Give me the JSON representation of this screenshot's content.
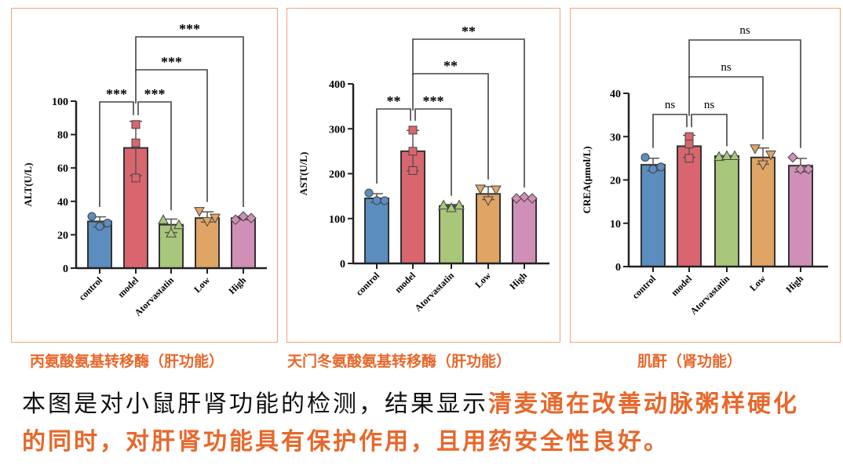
{
  "chart_data": [
    {
      "type": "bar",
      "title": "丙氨酸氨基转移酶（肝功能）",
      "ylabel": "ALT(U/L)",
      "ylim": [
        0,
        100
      ],
      "yticks": [
        0,
        20,
        40,
        60,
        80,
        100
      ],
      "categories": [
        "control",
        "model",
        "Atorvastatin",
        "Low",
        "High"
      ],
      "values": [
        28,
        72,
        26,
        30,
        30
      ],
      "points": [
        [
          31,
          25,
          27
        ],
        [
          86,
          75,
          54
        ],
        [
          29,
          21,
          26
        ],
        [
          34,
          28,
          30
        ],
        [
          29,
          31,
          30
        ]
      ],
      "significance": [
        {
          "pair": [
            0,
            1
          ],
          "label": "***"
        },
        {
          "pair": [
            1,
            2
          ],
          "label": "***"
        },
        {
          "pair": [
            1,
            3
          ],
          "label": "***"
        },
        {
          "pair": [
            1,
            4
          ],
          "label": "***"
        }
      ]
    },
    {
      "type": "bar",
      "title": "天门冬氨酸氨基转移酶（肝功能）",
      "ylabel": "AST(U/L)",
      "ylim": [
        0,
        400
      ],
      "yticks": [
        0,
        100,
        200,
        300,
        400
      ],
      "categories": [
        "control",
        "model",
        "Atorvastatin",
        "Low",
        "High"
      ],
      "values": [
        145,
        250,
        128,
        155,
        145
      ],
      "points": [
        [
          157,
          140,
          140
        ],
        [
          297,
          250,
          207
        ],
        [
          130,
          124,
          130
        ],
        [
          166,
          140,
          164
        ],
        [
          145,
          148,
          145
        ]
      ],
      "significance": [
        {
          "pair": [
            0,
            1
          ],
          "label": "**"
        },
        {
          "pair": [
            1,
            2
          ],
          "label": "***"
        },
        {
          "pair": [
            1,
            3
          ],
          "label": "**"
        },
        {
          "pair": [
            1,
            4
          ],
          "label": "**"
        }
      ]
    },
    {
      "type": "bar",
      "title": "肌酐（肾功能）",
      "ylabel": "CREA(μmol/L)",
      "ylim": [
        0,
        40
      ],
      "yticks": [
        0,
        10,
        20,
        30,
        40
      ],
      "categories": [
        "control",
        "model",
        "Atorvastatin",
        "Low",
        "High"
      ],
      "values": [
        23.5,
        27.8,
        25.5,
        25.2,
        23.3
      ],
      "points": [
        [
          25.2,
          22.5,
          23
        ],
        [
          30,
          28.3,
          25
        ],
        [
          25.4,
          25.6,
          25.6
        ],
        [
          27.2,
          23.5,
          25.8
        ],
        [
          25.2,
          22.5,
          22.5
        ]
      ],
      "significance": [
        {
          "pair": [
            0,
            1
          ],
          "label": "ns"
        },
        {
          "pair": [
            1,
            2
          ],
          "label": "ns"
        },
        {
          "pair": [
            1,
            3
          ],
          "label": "ns"
        },
        {
          "pair": [
            1,
            4
          ],
          "label": "ns"
        }
      ]
    }
  ],
  "colors": [
    "#5b8dbf",
    "#d9666f",
    "#a9c77b",
    "#e0a464",
    "#d08fb6"
  ],
  "accent": "#e8672a",
  "body": {
    "part1": "本图是对小鼠肝肾功能的检测，结果显示",
    "part2": "清麦通在改善动脉粥样硬化",
    "part3": "的同时，对肝肾功能具有保护作用，且用药安全性良好。"
  }
}
